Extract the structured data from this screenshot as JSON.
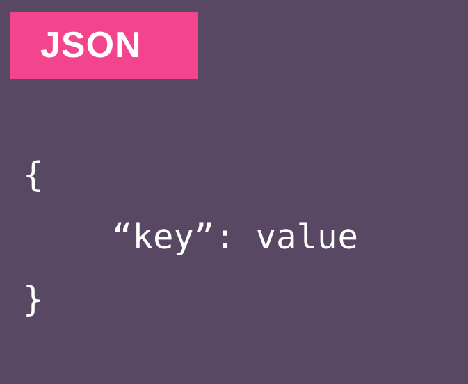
{
  "badge": {
    "label": "JSON"
  },
  "code": {
    "open_brace": "{",
    "key_line": "“key”: value",
    "close_brace": "}"
  },
  "colors": {
    "background": "#584863",
    "badge": "#f2458d",
    "text": "#ffffff"
  }
}
